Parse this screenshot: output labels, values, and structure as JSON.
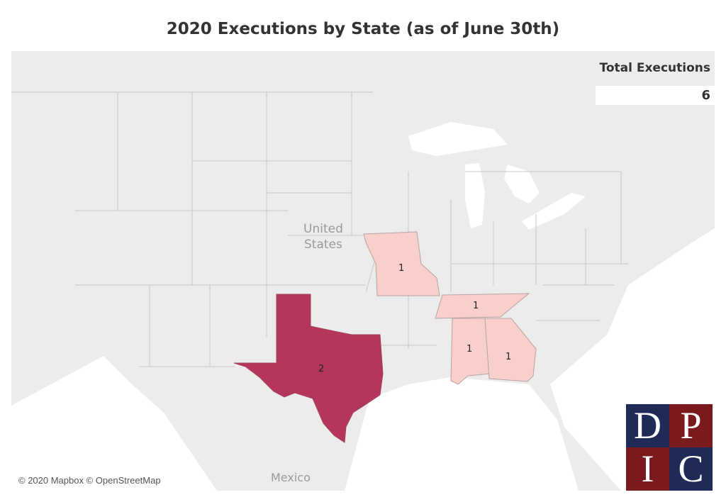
{
  "title": "2020 Executions by State (as of June 30th)",
  "summary": {
    "label": "Total Executions",
    "value": "6"
  },
  "map_labels": {
    "country_us": [
      "United",
      "States"
    ],
    "country_mx": "Mexico"
  },
  "attribution": "© 2020 Mapbox © OpenStreetMap",
  "colors": {
    "one": "#f8cfcb",
    "two": "#b5365b",
    "land": "#e3e3e3",
    "water": "#ffffff",
    "border": "#c4c4c4"
  },
  "states": [
    {
      "name": "Missouri",
      "executions": 1,
      "label": "1"
    },
    {
      "name": "Tennessee",
      "executions": 1,
      "label": "1"
    },
    {
      "name": "Alabama",
      "executions": 1,
      "label": "1"
    },
    {
      "name": "Georgia",
      "executions": 1,
      "label": "1"
    },
    {
      "name": "Texas",
      "executions": 2,
      "label": "2"
    }
  ],
  "logo": {
    "letters": [
      "D",
      "P",
      "I",
      "C"
    ],
    "colors": [
      "#1f2a56",
      "#7b1a1d",
      "#7b1a1d",
      "#1f2a56"
    ]
  }
}
